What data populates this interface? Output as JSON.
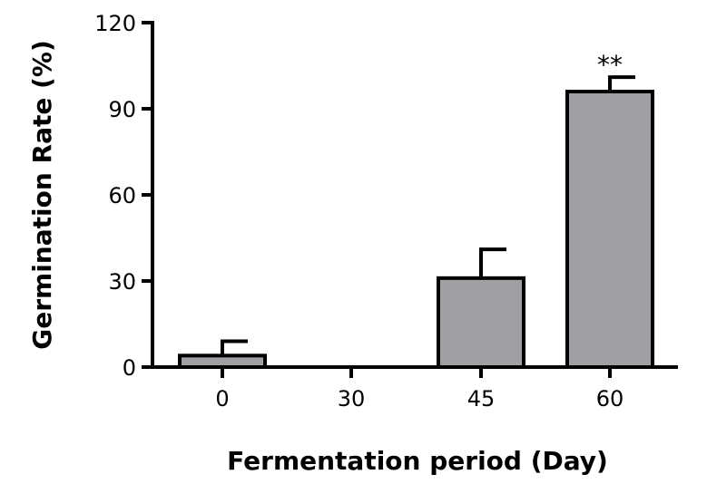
{
  "chart_data": {
    "type": "bar",
    "categories": [
      "0",
      "30",
      "45",
      "60"
    ],
    "values": [
      4,
      0,
      31,
      96
    ],
    "error_upper": [
      9,
      0,
      41,
      101
    ],
    "annotations": [
      {
        "category": "60",
        "text": "**"
      }
    ],
    "xlabel": "Fermentation period (Day)",
    "ylabel": "Germination Rate (%)",
    "ylim": [
      0,
      120
    ],
    "yticks": [
      "0",
      "30",
      "60",
      "90",
      "120"
    ],
    "bar_color": "#a0a0a4",
    "grid": false
  }
}
